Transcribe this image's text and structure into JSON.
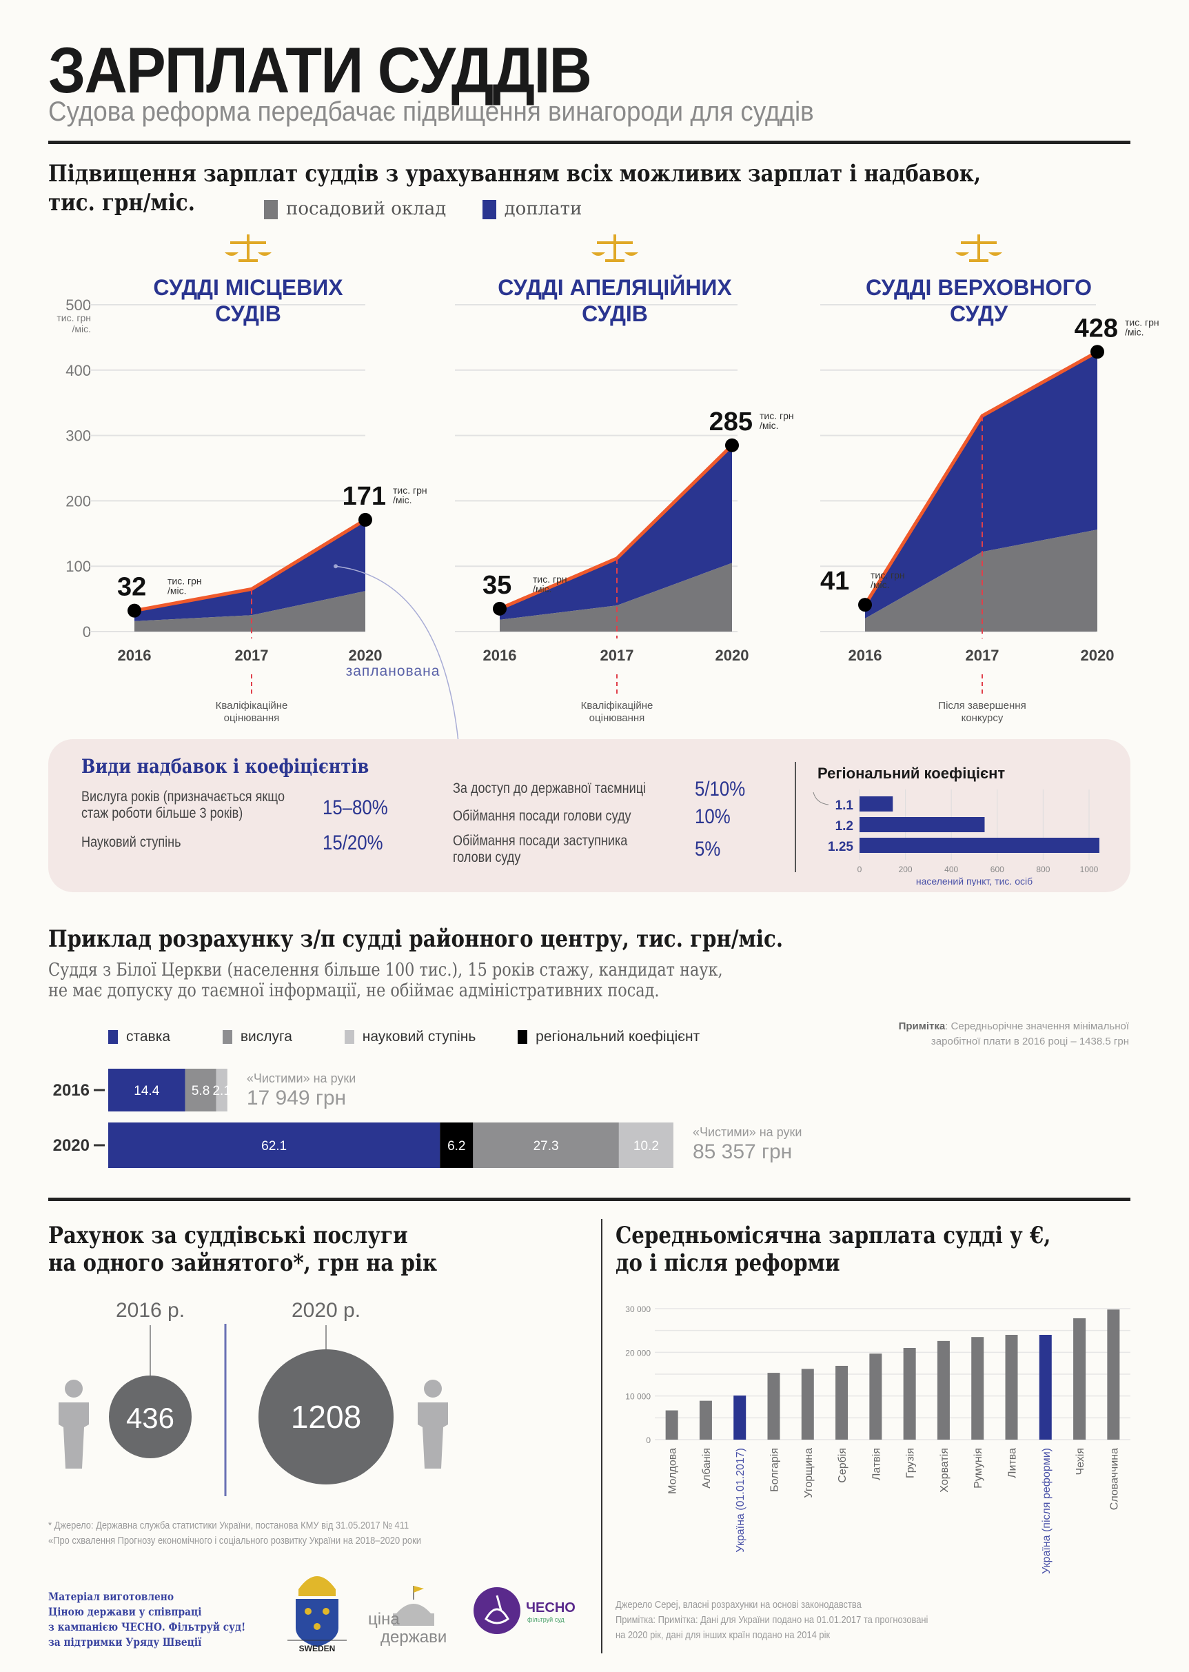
{
  "header": {
    "title": "ЗАРПЛАТИ СУДДІВ",
    "subtitle": "Судова реформа передбачає підвищення винагороди для суддів"
  },
  "section1": {
    "title_line1": "Підвищення зарплат суддів з урахуванням всіх можливих зарплат і надбавок,",
    "title_line2": "тис. грн/міс.",
    "legend": [
      {
        "label": "посадовий оклад",
        "color": "#7a7a7c"
      },
      {
        "label": "доплати",
        "color": "#2a3590"
      }
    ]
  },
  "chart_data": [
    {
      "type": "area",
      "title": "СУДДІ МІСЦЕВИХ СУДІВ",
      "title_line1": "СУДДІ МІСЦЕВИХ",
      "title_line2": "СУДІВ",
      "x": [
        "2016",
        "2017",
        "2020"
      ],
      "ylim": [
        0,
        500
      ],
      "yticks": [
        0,
        100,
        200,
        300,
        400,
        500
      ],
      "y_unit_label": "тис. грн /міс.",
      "series": [
        {
          "name": "посадовий оклад",
          "values": [
            16,
            25,
            62
          ]
        },
        {
          "name": "доплати",
          "values": [
            16,
            40,
            109
          ]
        }
      ],
      "totals": [
        32,
        65,
        171
      ],
      "labels": {
        "start": "32",
        "end": "171",
        "unit": "тис. грн /міс."
      },
      "annotation_2017": "Кваліфікаційне оцінювання",
      "note_2020": "запланована"
    },
    {
      "type": "area",
      "title": "СУДДІ АПЕЛЯЦІЙНИХ СУДІВ",
      "title_line1": "СУДДІ АПЕЛЯЦІЙНИХ",
      "title_line2": "СУДІВ",
      "x": [
        "2016",
        "2017",
        "2020"
      ],
      "ylim": [
        0,
        500
      ],
      "series": [
        {
          "name": "посадовий оклад",
          "values": [
            18,
            40,
            105
          ]
        },
        {
          "name": "доплати",
          "values": [
            17,
            72,
            180
          ]
        }
      ],
      "totals": [
        35,
        112,
        285
      ],
      "labels": {
        "start": "35",
        "end": "285",
        "unit": "тис. грн /міс."
      },
      "annotation_2017": "Кваліфікаційне оцінювання"
    },
    {
      "type": "area",
      "title": "СУДДІ ВЕРХОВНОГО СУДУ",
      "title_line1": "СУДДІ ВЕРХОВНОГО",
      "title_line2": "СУДУ",
      "x": [
        "2016",
        "2017",
        "2020"
      ],
      "ylim": [
        0,
        500
      ],
      "series": [
        {
          "name": "посадовий оклад",
          "values": [
            20,
            122,
            156
          ]
        },
        {
          "name": "доплати",
          "values": [
            21,
            208,
            272
          ]
        }
      ],
      "totals": [
        41,
        330,
        428
      ],
      "labels": {
        "start": "41",
        "end": "428",
        "unit": "тис. грн /міс."
      },
      "annotation_2017": "Після завершення конкурсу"
    },
    {
      "type": "bar",
      "orientation": "horizontal",
      "title": "Регіональний коефіцієнт",
      "categories": [
        "1.1",
        "1.2",
        "1.25"
      ],
      "values": [
        100,
        500,
        1000
      ],
      "xlim": [
        0,
        1000
      ],
      "xticks": [
        0,
        200,
        400,
        600,
        800,
        1000
      ],
      "xlabel": "населений пункт, тис. осіб"
    },
    {
      "type": "bar",
      "orientation": "horizontal-stacked",
      "title": "Приклад розрахунку з/п судді районного центру, тис. грн/міс.",
      "categories": [
        "2016",
        "2020"
      ],
      "series": [
        {
          "name": "ставка",
          "color": "#2a3590",
          "values": [
            14.4,
            62.1
          ]
        },
        {
          "name": "регіональний коефіцієнт",
          "color": "#000000",
          "values": [
            0,
            6.2
          ]
        },
        {
          "name": "вислуга",
          "color": "#8e8e90",
          "values": [
            5.8,
            27.3
          ]
        },
        {
          "name": "науковий ступінь",
          "color": "#c4c4c6",
          "values": [
            2.1,
            10.2
          ]
        }
      ],
      "net_labels": [
        {
          "caption": "«Чистими» на руки",
          "value": "17 949 грн"
        },
        {
          "caption": "«Чистими» на руки",
          "value": "85 357 грн"
        }
      ]
    },
    {
      "type": "bar",
      "title": "Середньомісячна зарплата судді у €, до і після реформи",
      "categories": [
        "Молдова",
        "Албанія",
        "Україна (01.01.2017)",
        "Болгарія",
        "Угорщина",
        "Сербія",
        "Латвія",
        "Грузія",
        "Хорватія",
        "Румунія",
        "Литва",
        "Україна (після реформи)",
        "Чехія",
        "Словаччина"
      ],
      "values": [
        6700,
        8900,
        10100,
        15300,
        16200,
        16900,
        19700,
        21000,
        22600,
        23500,
        24000,
        24000,
        27800,
        29800
      ],
      "highlight": [
        "Україна (01.01.2017)",
        "Україна (після реформи)"
      ],
      "ylim": [
        0,
        30000
      ],
      "yticks": [
        "0",
        "10 000",
        "20 000",
        "30 000"
      ],
      "grid": true
    },
    {
      "type": "bubble",
      "title": "Рахунок за суддівські послуги на одного зайнятого*, грн на рік",
      "categories": [
        "2016 р.",
        "2020 р."
      ],
      "values": [
        436,
        1208
      ]
    }
  ],
  "allowances": {
    "title": "Види надбавок і коефіцієнтів",
    "left": [
      {
        "label": "Вислуга років (призначається якщо стаж роботи більше 3 років)",
        "value": "15–80%"
      },
      {
        "label": "Науковий ступінь",
        "value": "15/20%"
      }
    ],
    "right": [
      {
        "label": "За доступ до державної таємниці",
        "value": "5/10%"
      },
      {
        "label": "Обіймання посади голови суду",
        "value": "10%"
      },
      {
        "label": "Обіймання посади заступника голови суду",
        "value": "5%"
      }
    ],
    "regional": {
      "title": "Регіональний коефіцієнт",
      "xlabel": "населений пункт, тис. осіб"
    }
  },
  "example": {
    "title": "Приклад розрахунку з/п судді районного центру, тис. грн/міс.",
    "desc_line1": "Суддя з Білої Церкви (населення більше 100 тис.), 15 років стажу, кандидат наук,",
    "desc_line2": "не має допуску до таємної інформації, не обіймає адміністративних посад.",
    "legend": [
      "ставка",
      "вислуга",
      "науковий ступінь",
      "регіональний коефіцієнт"
    ],
    "note_bold": "Примітка",
    "note_line1": ": Середньорічне значення мінімальної",
    "note_line2": "заробітної плати в 2016 році – 1438.5 грн"
  },
  "bill": {
    "title_line1": "Рахунок за суддівські послуги",
    "title_line2": "на одного зайнятого*, грн на рік",
    "year1": "2016 р.",
    "year2": "2020 р.",
    "val1": "436",
    "val2": "1208",
    "source_line1": "* Джерело: Державна служба статистики України, постанова КМУ від 31.05.2017 № 411",
    "source_line2": "«Про схвалення Прогнозу економічного і соціального розвитку України на 2018–2020 роки"
  },
  "euro": {
    "title_line1": "Середньомісячна зарплата судді у €,",
    "title_line2": "до і після реформи",
    "source_line1": "Джерело Серej, власні розрахунки на основі законодавства",
    "source_line2": "Примітка: Примітка: Дані для України подано на 01.01.2017 та прогнозовані",
    "source_line3": "на 2020 рік, дані для інших країн подано на 2014 рік"
  },
  "footer": {
    "credit_lines": [
      "Матеріал виготовлено",
      "Ціною держави у співпраці",
      "з кампанією ЧЕСНО. Фільтруй суд!",
      "за підтримки Уряду Швеції"
    ],
    "logo_sweden": "SWEDEN",
    "logo_cina_1": "ціна",
    "logo_cina_2": "держави",
    "logo_chesno": "ЧЕСНО",
    "logo_chesno_sub": "фільтруй суд"
  }
}
